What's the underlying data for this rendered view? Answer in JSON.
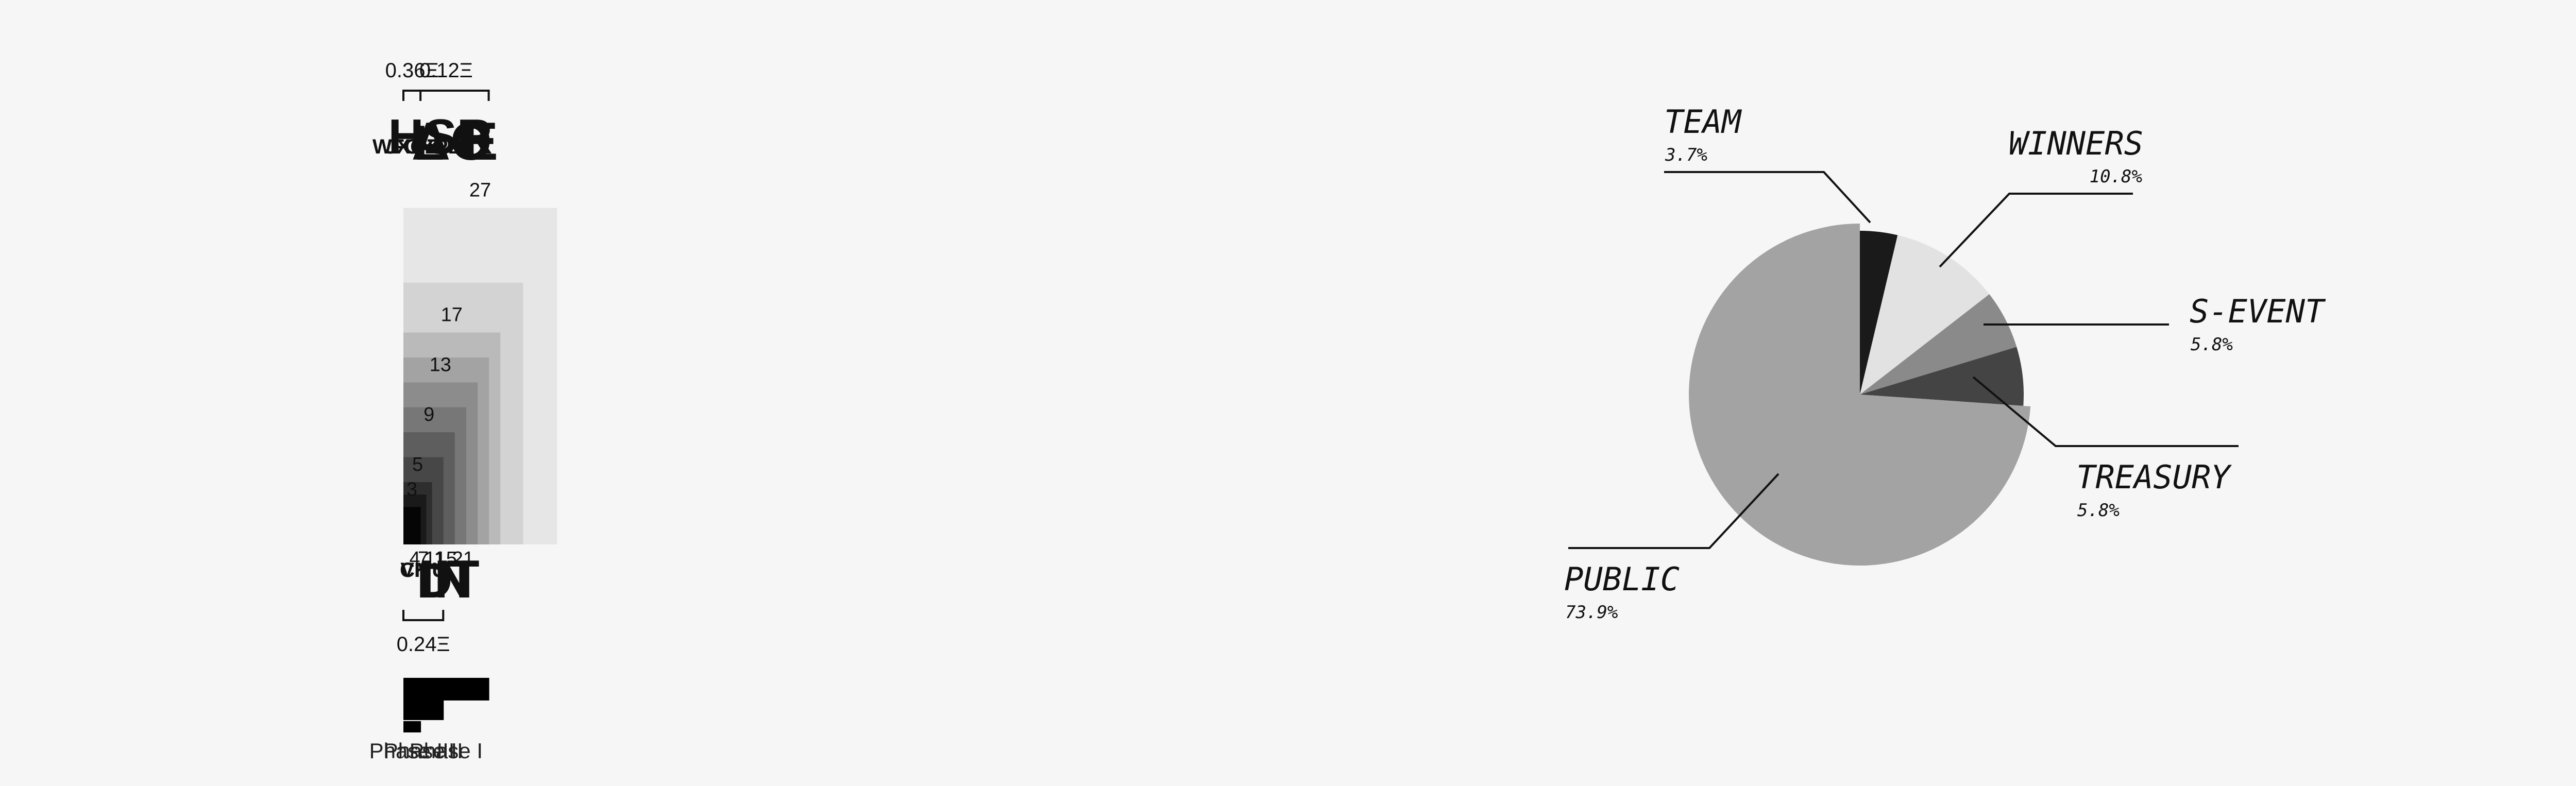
{
  "chart_data": [
    {
      "type": "bar",
      "groups": [
        {
          "top": "E",
          "count": 27,
          "side": "top"
        },
        {
          "bottom": "T",
          "count": 21,
          "side": "bottom"
        },
        {
          "top": "AO",
          "count": 17,
          "side": "top"
        },
        {
          "bottom": "IN",
          "count": 15,
          "side": "bottom"
        },
        {
          "top": "HSR",
          "count": 13,
          "side": "top"
        },
        {
          "bottom": "D",
          "count": 11,
          "side": "bottom"
        },
        {
          "top": "L",
          "count": 9,
          "side": "top"
        },
        {
          "bottom": "CMU",
          "count": 7,
          "side": "bottom"
        },
        {
          "top": "WFGYPB",
          "count": 5,
          "side": "top"
        },
        {
          "bottom": "VK",
          "count": 4,
          "side": "bottom"
        },
        {
          "top": "JXQZ",
          "count": 3,
          "side": "top"
        }
      ],
      "prices": [
        {
          "label": "0.12Ξ",
          "side": "top",
          "from_group": 0,
          "to_group": 3
        },
        {
          "label": "0.24Ξ",
          "side": "bottom",
          "from_group": 4,
          "to_group": 7
        },
        {
          "label": "0.36Ξ",
          "side": "top",
          "from_group": 8,
          "to_group": 10
        }
      ],
      "phases": [
        {
          "label": "Phase I",
          "from_group": 0,
          "to_group": 3,
          "level": 3
        },
        {
          "label": "Phase II",
          "from_group": 4,
          "to_group": 7,
          "level": 2
        },
        {
          "label": "Phase III",
          "from_group": 8,
          "to_group": 10,
          "level": 1
        }
      ]
    },
    {
      "type": "pie",
      "slices": [
        {
          "name": "TEAM",
          "value": 3.7,
          "label": "3.7%",
          "color": "#1a1a1a"
        },
        {
          "name": "WINNERS",
          "value": 10.8,
          "label": "10.8%",
          "color": "#e2e2e2"
        },
        {
          "name": "S-EVENT",
          "value": 5.8,
          "label": "5.8%",
          "color": "#8a8a8a"
        },
        {
          "name": "TREASURY",
          "value": 5.8,
          "label": "5.8%",
          "color": "#444444"
        },
        {
          "name": "PUBLIC",
          "value": 73.9,
          "label": "73.9%",
          "color": "#a3a3a3"
        }
      ]
    }
  ]
}
